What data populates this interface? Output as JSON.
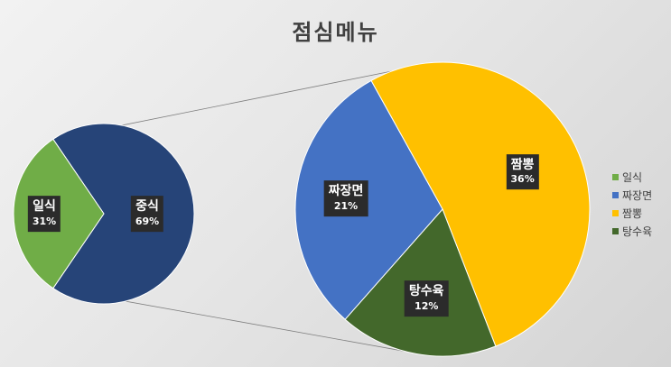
{
  "chart_data": {
    "type": "pie",
    "subtype": "pie-of-pie",
    "title": "점심메뉴",
    "primary": [
      {
        "name": "일식",
        "value": 31,
        "label": "31%",
        "color": "#70ad47"
      },
      {
        "name": "중식",
        "value": 69,
        "label": "69%",
        "color": "#264478"
      }
    ],
    "secondary": [
      {
        "name": "짜장면",
        "value": 21,
        "label": "21%",
        "color": "#4472c4"
      },
      {
        "name": "짬뽕",
        "value": 36,
        "label": "36%",
        "color": "#ffc000"
      },
      {
        "name": "탕수육",
        "value": 12,
        "label": "12%",
        "color": "#43682b"
      }
    ],
    "legend": [
      {
        "name": "일식",
        "color": "#70ad47"
      },
      {
        "name": "짜장면",
        "color": "#4472c4"
      },
      {
        "name": "짬뽕",
        "color": "#ffc000"
      },
      {
        "name": "탕수육",
        "color": "#43682b"
      }
    ],
    "legend_position": "right",
    "grid": false
  }
}
